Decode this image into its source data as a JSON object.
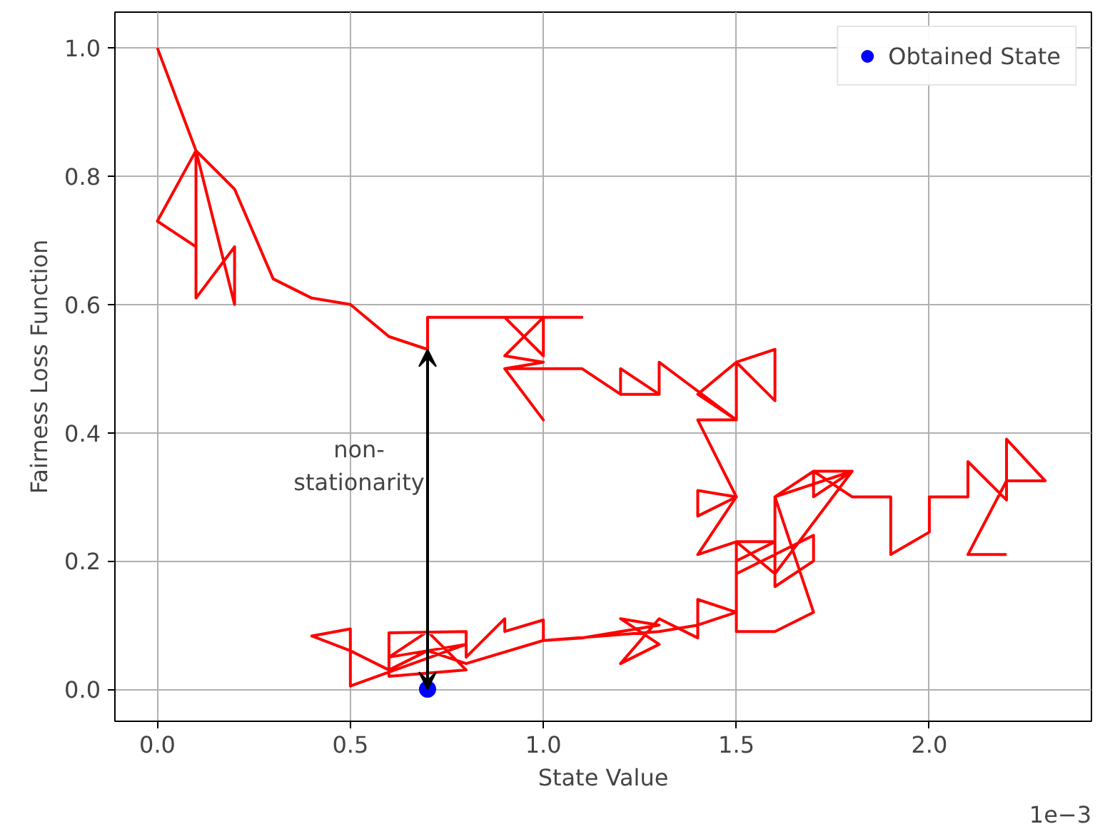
{
  "chart_data": {
    "type": "line",
    "xlabel": "State Value",
    "ylabel": "Fairness Loss Function",
    "xlim": [
      -0.11,
      2.42
    ],
    "ylim": [
      -0.05,
      1.056
    ],
    "xticks": [
      {
        "value": 0,
        "label": "0.0"
      },
      0.5,
      {
        "value": 1,
        "label": "1.0"
      },
      1.5,
      {
        "value": 2,
        "label": "2.0"
      }
    ],
    "yticks": [
      {
        "value": 0,
        "label": "0.0"
      },
      {
        "value": 0.2,
        "label": "0.2"
      },
      {
        "value": 0.4,
        "label": "0.4"
      },
      {
        "value": 0.6,
        "label": "0.6"
      },
      {
        "value": 0.8,
        "label": "0.8"
      },
      {
        "value": 1,
        "label": "1.0"
      }
    ],
    "grid": true,
    "legend": "top right",
    "marker": "none",
    "line_style": "solid",
    "annotations": [
      "1e−3",
      "non-\nstationarity"
    ],
    "series": [
      {
        "color": "#ff0000",
        "x": [
          0,
          0.1,
          0,
          0.1,
          0.1,
          0.1,
          0.2,
          0.2,
          0.1,
          0.2,
          0.3,
          0.4,
          0.5,
          0.6,
          0.7,
          0.7,
          1.1,
          0.9,
          1.0,
          1.0,
          0.9,
          1.0,
          0.9,
          1.0,
          0.9,
          1.1,
          1.2,
          1.2,
          1.3,
          1.2,
          1.3,
          1.3,
          1.5,
          1.4,
          1.5,
          1.6,
          1.6,
          1.5,
          1.5,
          1.4,
          1.5,
          1.4,
          1.4,
          1.5,
          1.4,
          1.5,
          1.6,
          1.6,
          1.8,
          1.7,
          1.7,
          1.8,
          1.6,
          1.5,
          1.5,
          1.7,
          1.7,
          1.6,
          1.6,
          1.7,
          1.6,
          1.5,
          1.5,
          1.4,
          1.4,
          1.3,
          1.2,
          1.3,
          1.2,
          1.3,
          1.1,
          1.0,
          1.0,
          0.9,
          0.9,
          0.8,
          0.8,
          0.6,
          0.6,
          0.8,
          0.7,
          0.6,
          0.8,
          0.5,
          0.5,
          0.4,
          0.5,
          0.6,
          0.7,
          0.8,
          1.0,
          1.3,
          1.4,
          1.5,
          1.5,
          1.6,
          1.6,
          1.7,
          1.8,
          1.9,
          1.9,
          2.0,
          2.0,
          2.1,
          2.1,
          2.2,
          2.2,
          2.3,
          2.2,
          2.1,
          2.2
        ],
        "values": [
          1.0,
          0.84,
          0.73,
          0.69,
          0.84,
          0.61,
          0.69,
          0.6,
          0.84,
          0.78,
          0.64,
          0.61,
          0.6,
          0.55,
          0.53,
          0.58,
          0.58,
          0.58,
          0.52,
          0.58,
          0.52,
          0.51,
          0.5,
          0.42,
          0.5,
          0.5,
          0.46,
          0.5,
          0.46,
          0.46,
          0.46,
          0.51,
          0.42,
          0.46,
          0.51,
          0.53,
          0.45,
          0.51,
          0.42,
          0.42,
          0.3,
          0.31,
          0.27,
          0.3,
          0.21,
          0.23,
          0.23,
          0.3,
          0.34,
          0.34,
          0.3,
          0.34,
          0.18,
          0.23,
          0.18,
          0.24,
          0.2,
          0.16,
          0.3,
          0.12,
          0.09,
          0.09,
          0.12,
          0.14,
          0.08,
          0.11,
          0.04,
          0.07,
          0.11,
          0.1,
          0.08,
          0.076,
          0.108,
          0.09,
          0.11,
          0.05,
          0.09,
          0.088,
          0.02,
          0.03,
          0.09,
          0.05,
          0.07,
          0.005,
          0.094,
          0.083,
          0.06,
          0.03,
          0.06,
          0.04,
          0.076,
          0.09,
          0.1,
          0.12,
          0.2,
          0.23,
          0.3,
          0.34,
          0.3,
          0.3,
          0.21,
          0.245,
          0.3,
          0.3,
          0.355,
          0.295,
          0.39,
          0.325,
          0.325,
          0.21,
          0.21
        ]
      },
      {
        "type": "scatter",
        "name": "Obtained State",
        "color": "#0000ff",
        "marker": "circle",
        "x": [
          0.7
        ],
        "values": [
          0
        ]
      }
    ]
  }
}
